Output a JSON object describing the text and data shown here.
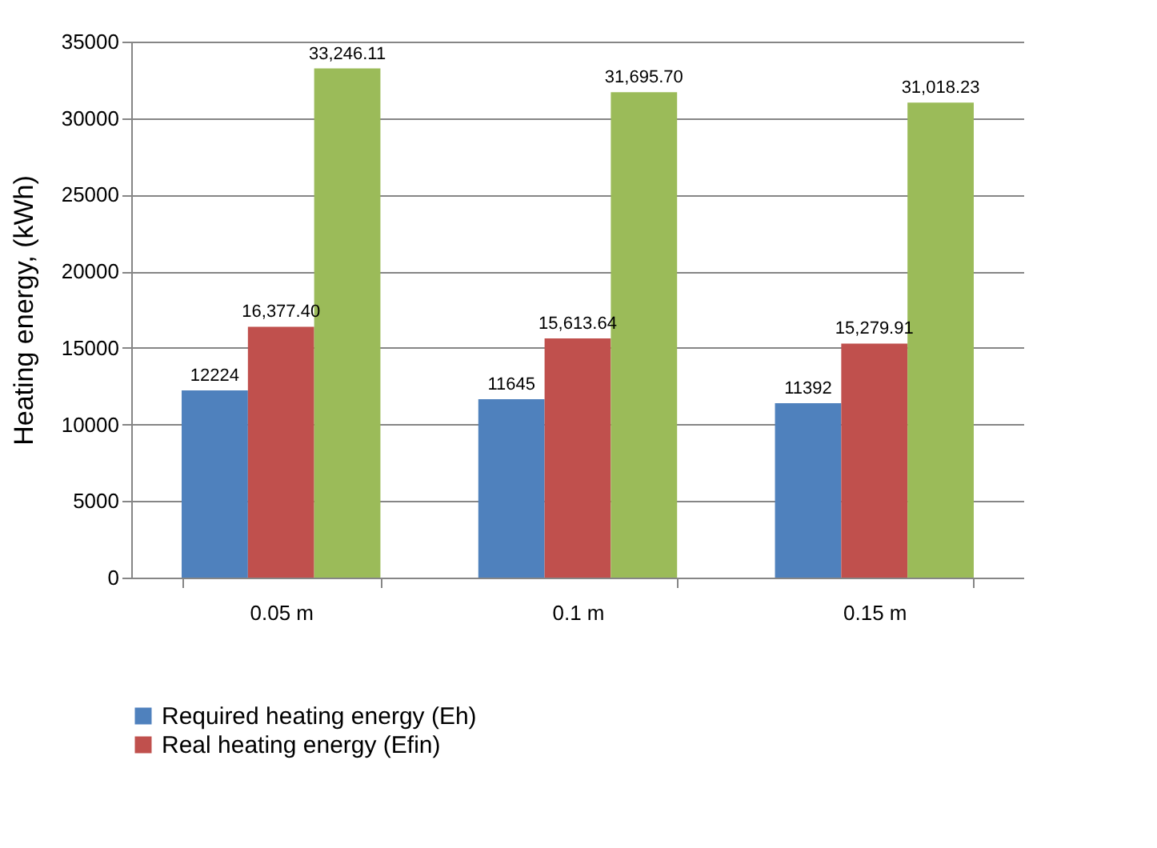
{
  "chart_data": {
    "type": "bar",
    "ylabel": "Heating energy, (kWh)",
    "categories": [
      "0.05 m",
      "0.1 m",
      "0.15 m"
    ],
    "series": [
      {
        "name": "Required heating energy (Eh)",
        "color": "#4f81bd",
        "values": [
          12224,
          11645,
          11392
        ],
        "value_labels": [
          "12224",
          "11645",
          "11392"
        ]
      },
      {
        "name": "Real heating energy (Efin)",
        "color": "#c0504d",
        "values": [
          16377.4,
          15613.64,
          15279.91
        ],
        "value_labels": [
          "16,377.40",
          "15,613.64",
          "15,279.91"
        ]
      },
      {
        "name": null,
        "color": "#9bbb59",
        "values": [
          33246.11,
          31695.7,
          31018.23
        ],
        "value_labels": [
          "33,246.11",
          "31,695.70",
          "31,018.23"
        ]
      }
    ],
    "ylim": [
      0,
      35000
    ],
    "yticks": [
      0,
      5000,
      10000,
      15000,
      20000,
      25000,
      30000,
      35000
    ],
    "grid": "y",
    "legend": "bottom"
  }
}
